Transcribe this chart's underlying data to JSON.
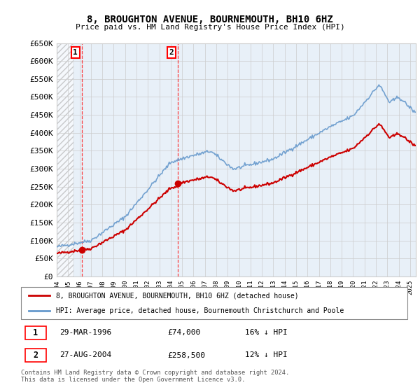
{
  "title1": "8, BROUGHTON AVENUE, BOURNEMOUTH, BH10 6HZ",
  "title2": "Price paid vs. HM Land Registry's House Price Index (HPI)",
  "ylabel_max": 650000,
  "yticks": [
    0,
    50000,
    100000,
    150000,
    200000,
    250000,
    300000,
    350000,
    400000,
    450000,
    500000,
    550000,
    600000,
    650000
  ],
  "sale1_date_num": 1996.24,
  "sale1_price": 74000,
  "sale2_date_num": 2004.65,
  "sale2_price": 258500,
  "legend_line1": "8, BROUGHTON AVENUE, BOURNEMOUTH, BH10 6HZ (detached house)",
  "legend_line2": "HPI: Average price, detached house, Bournemouth Christchurch and Poole",
  "table_row1": [
    "1",
    "29-MAR-1996",
    "£74,000",
    "16% ↓ HPI"
  ],
  "table_row2": [
    "2",
    "27-AUG-2004",
    "£258,500",
    "12% ↓ HPI"
  ],
  "footer": "Contains HM Land Registry data © Crown copyright and database right 2024.\nThis data is licensed under the Open Government Licence v3.0.",
  "line_color_red": "#cc0000",
  "line_color_blue": "#6699cc",
  "bg_color": "#e8f0f8",
  "grid_color": "#cccccc",
  "xmin": 1994.0,
  "xmax": 2025.5
}
